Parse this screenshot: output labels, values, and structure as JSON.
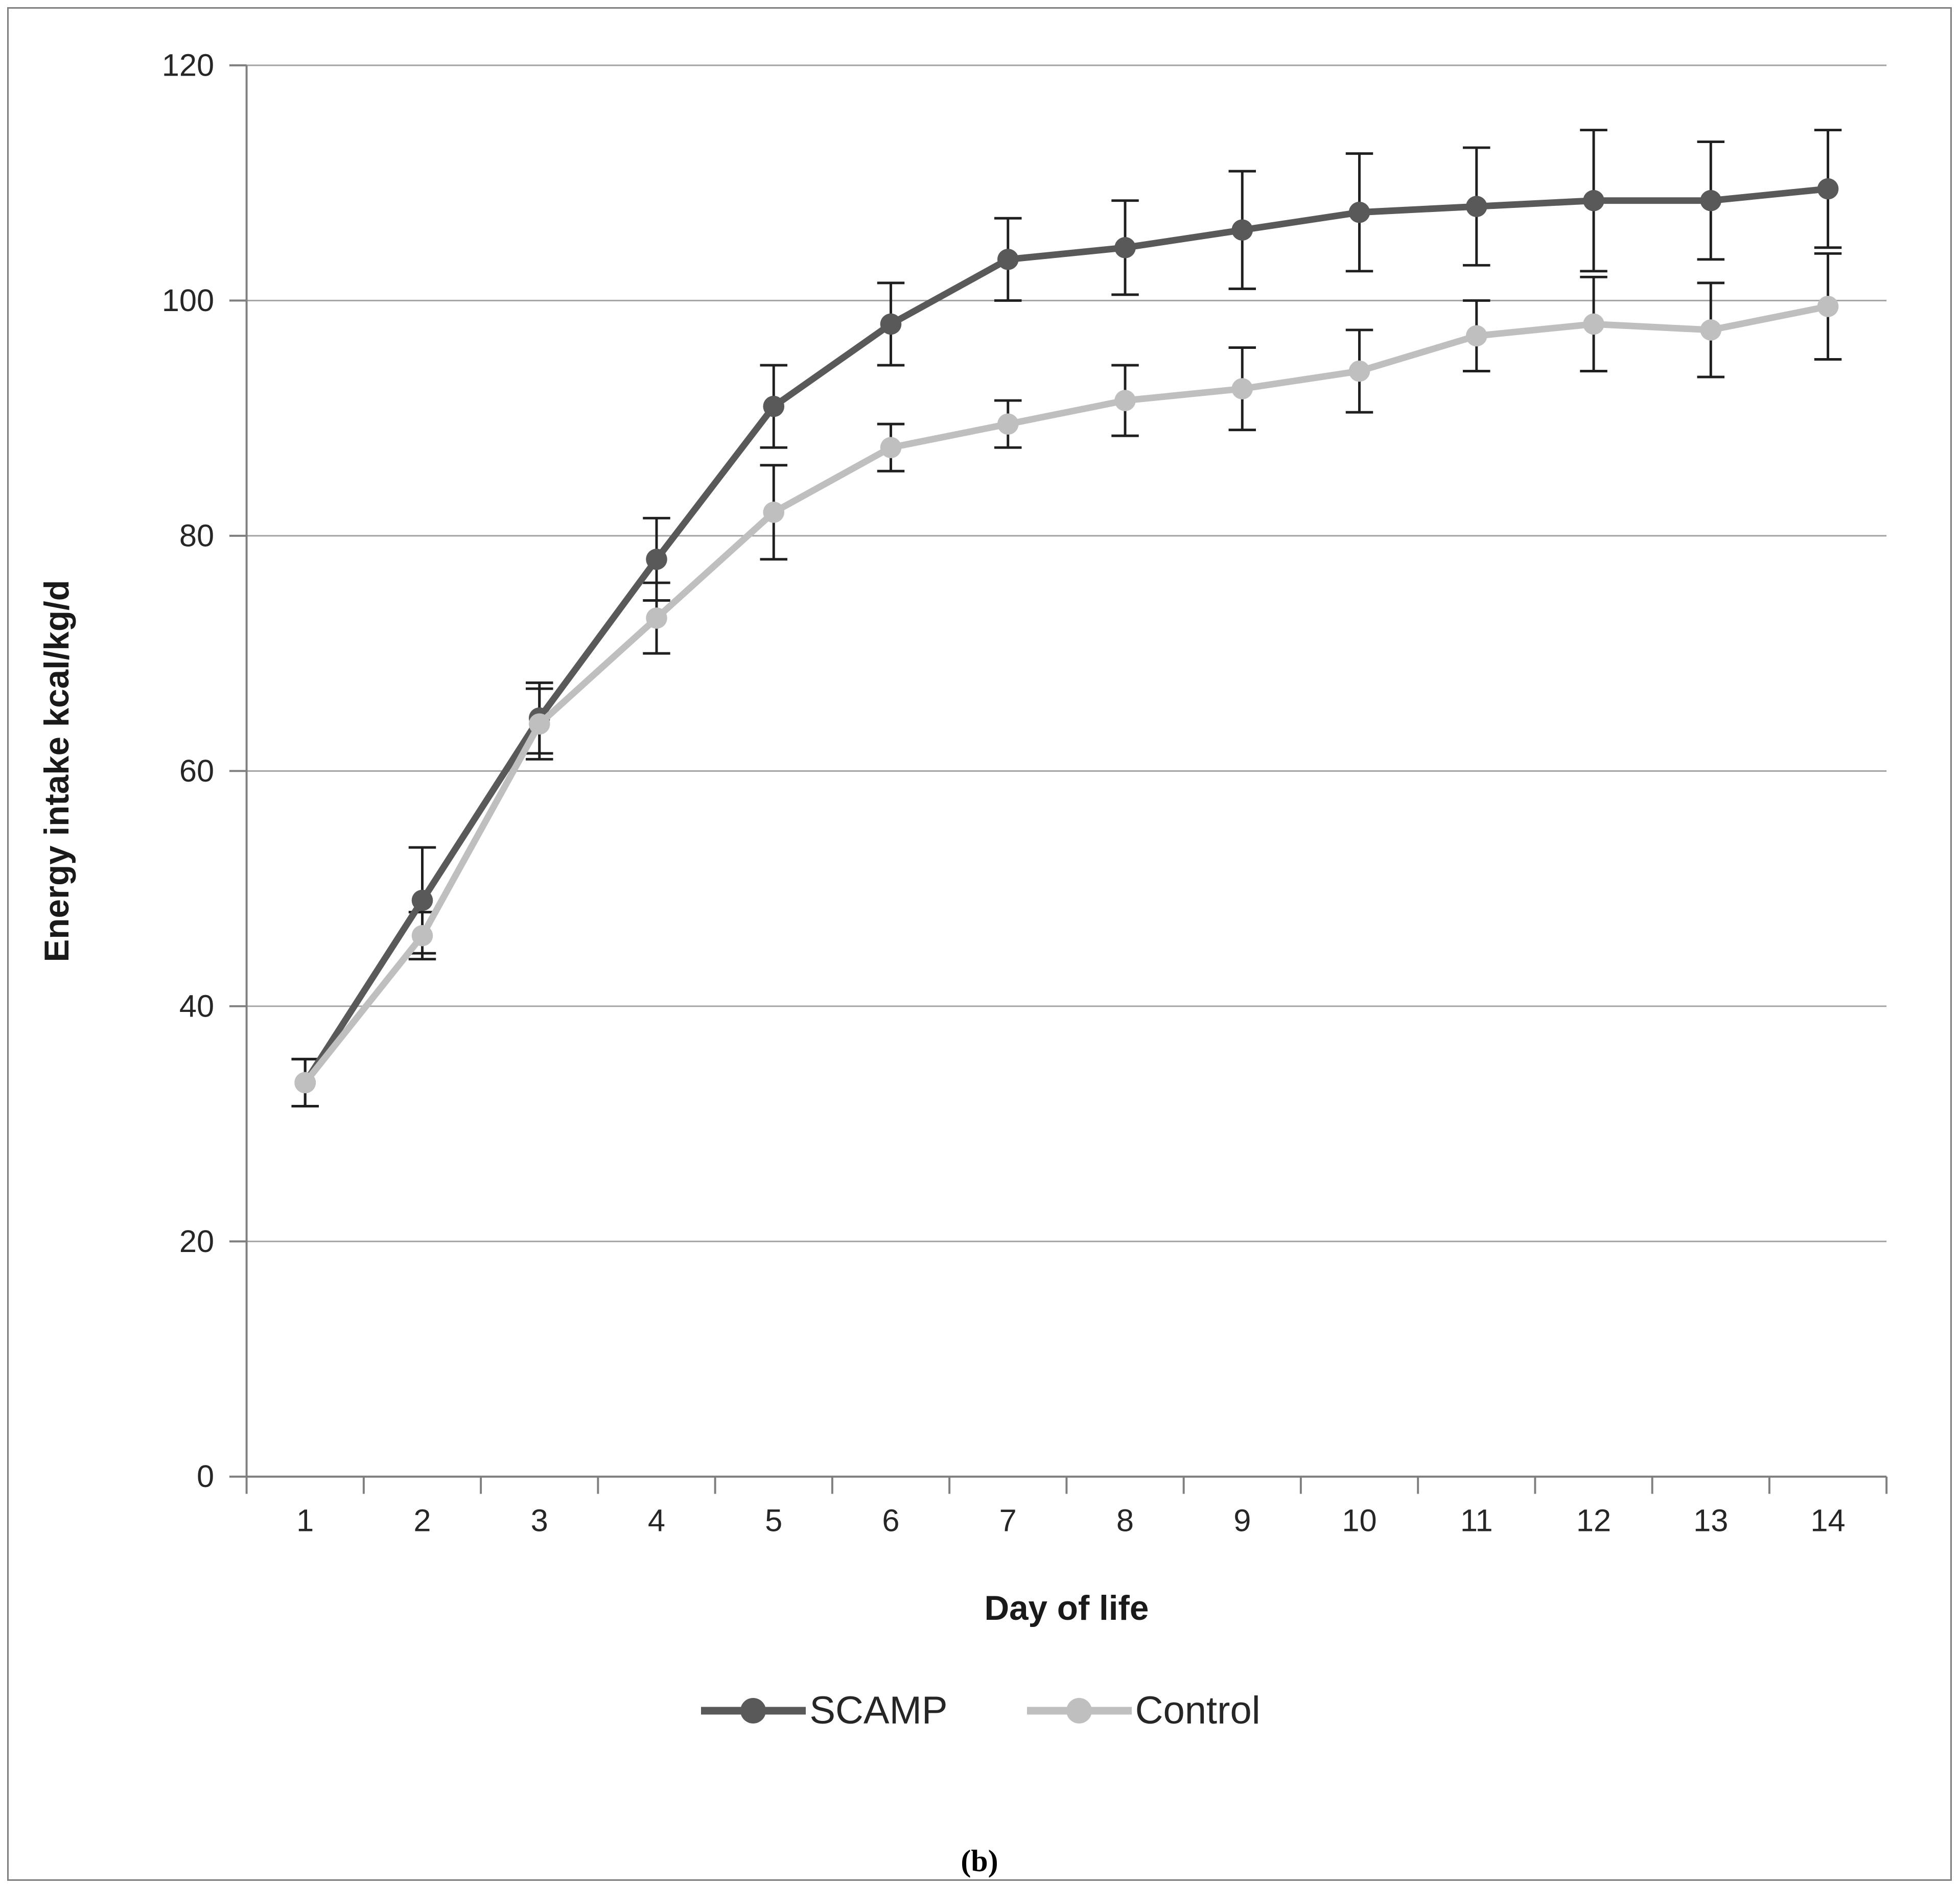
{
  "figure": {
    "caption": "(b)"
  },
  "chart_data": {
    "type": "line",
    "title": "",
    "xlabel": "Day of life",
    "ylabel": "Energy intake kcal/kg/d",
    "x": [
      1,
      2,
      3,
      4,
      5,
      6,
      7,
      8,
      9,
      10,
      11,
      12,
      13,
      14
    ],
    "ylim": [
      0,
      120
    ],
    "yticks": [
      0,
      20,
      40,
      60,
      80,
      100,
      120
    ],
    "grid": true,
    "legend_position": "bottom",
    "error_bars": true,
    "colors": {
      "gridline": "#a3a3a3",
      "axis": "#7f7f7f",
      "error_bar": "#1f1f1f",
      "text": "#262626"
    },
    "series": [
      {
        "name": "SCAMP",
        "color": "#595959",
        "values": [
          33.5,
          49,
          64.5,
          78,
          91,
          98,
          103.5,
          104.5,
          106,
          107.5,
          108,
          108.5,
          108.5,
          109.5
        ],
        "errors": [
          2,
          4.5,
          3,
          3.5,
          3.5,
          3.5,
          3.5,
          4,
          5,
          5,
          5,
          6,
          5,
          5
        ]
      },
      {
        "name": "Control",
        "color": "#bfbfbf",
        "values": [
          33.5,
          46,
          64,
          73,
          82,
          87.5,
          89.5,
          91.5,
          92.5,
          94,
          97,
          98,
          97.5,
          99.5
        ],
        "errors": [
          2,
          2,
          3,
          3,
          4,
          2,
          2,
          3,
          3.5,
          3.5,
          3,
          4,
          4,
          4.5
        ]
      }
    ]
  }
}
